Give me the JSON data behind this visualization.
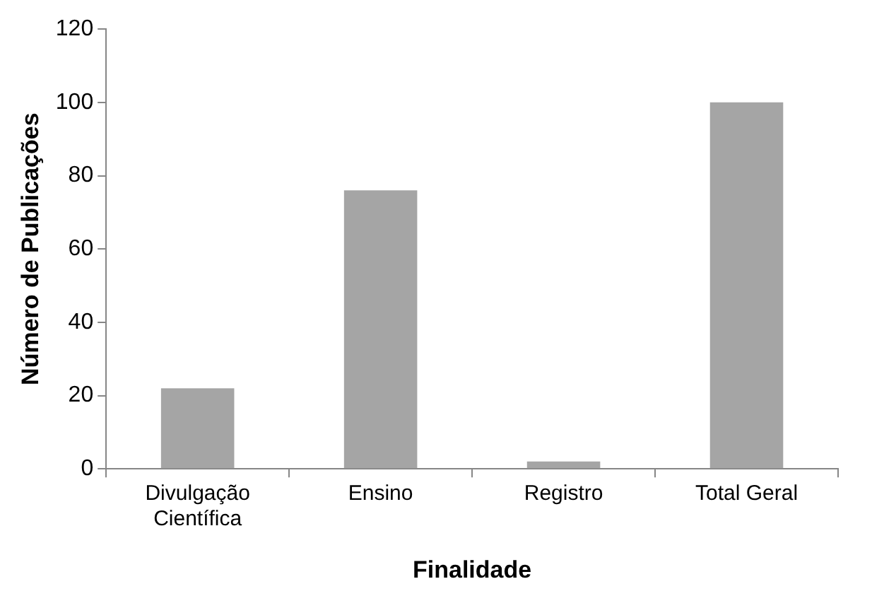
{
  "chart_data": {
    "type": "bar",
    "xlabel": "Finalidade",
    "ylabel": "Número de Publicações",
    "categories": [
      "Divulgação Científica",
      "Ensino",
      "Registro",
      "Total Geral"
    ],
    "values": [
      22,
      76,
      2,
      100
    ],
    "color": "#a5a5a5",
    "ylim": [
      0,
      120
    ],
    "yticks": [
      0,
      20,
      40,
      60,
      80,
      100,
      120
    ],
    "grid": false,
    "legend": false
  }
}
